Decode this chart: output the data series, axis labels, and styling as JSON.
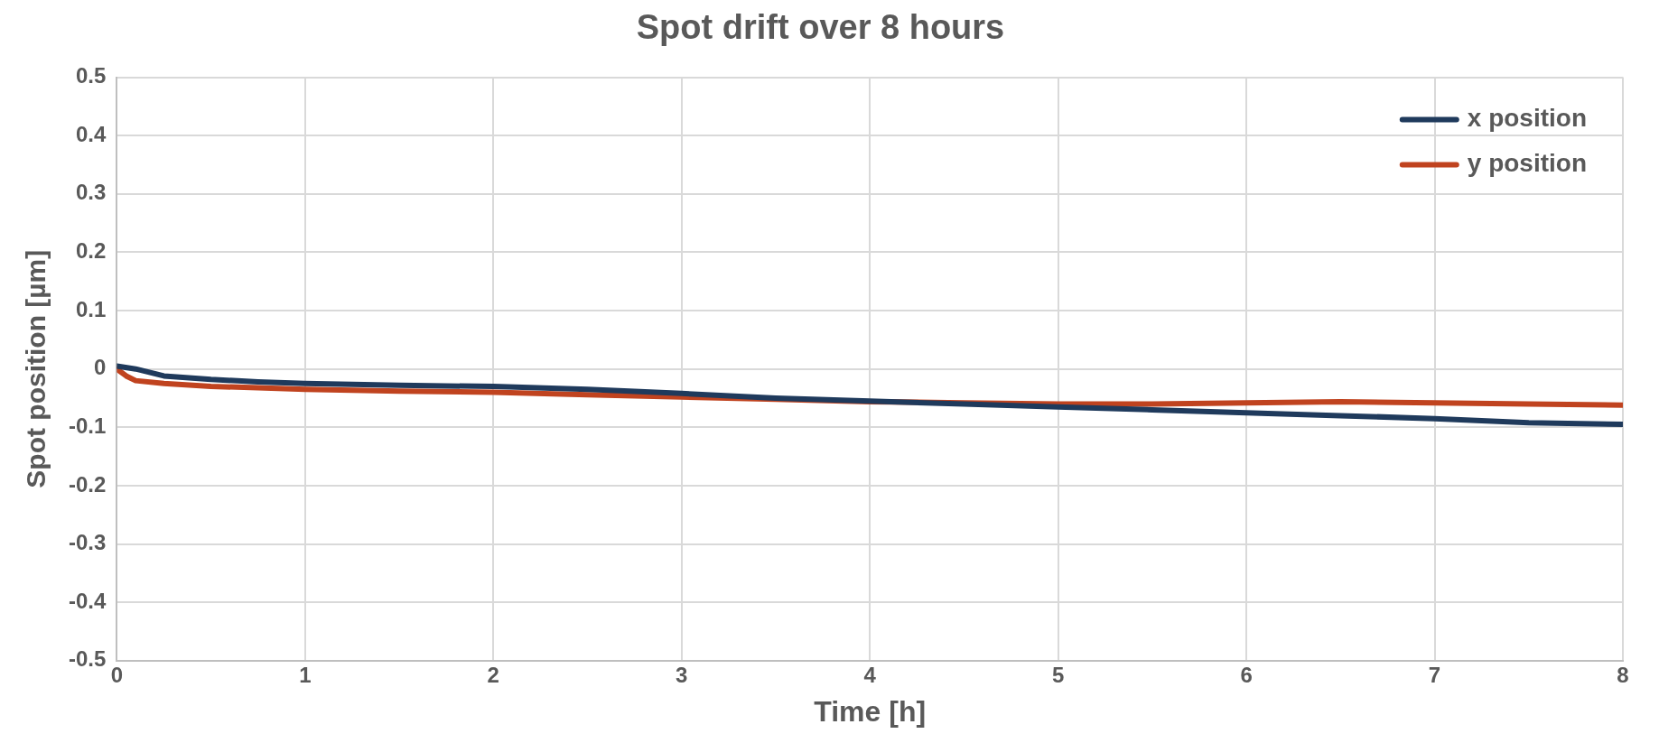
{
  "chart_data": {
    "type": "line",
    "title": "Spot drift over 8 hours",
    "xlabel": "Time [h]",
    "ylabel": "Spot position [µm]",
    "xlim": [
      0,
      8
    ],
    "xticks": [
      0,
      1,
      2,
      3,
      4,
      5,
      6,
      7,
      8
    ],
    "ylim": [
      -0.5,
      0.5
    ],
    "yticks": [
      -0.5,
      -0.4,
      -0.3,
      -0.2,
      -0.1,
      0,
      0.1,
      0.2,
      0.3,
      0.4,
      0.5
    ],
    "grid": true,
    "legend": "top right",
    "marker": "none",
    "line_style": "solid",
    "series": [
      {
        "name": "x position",
        "color": "#1f3a5c",
        "x": [
          0,
          0.1,
          0.25,
          0.5,
          0.75,
          1,
          1.5,
          2,
          2.5,
          3,
          3.5,
          4,
          4.5,
          5,
          5.5,
          6,
          6.5,
          7,
          7.5,
          8
        ],
        "values": [
          0.005,
          0.0,
          -0.012,
          -0.018,
          -0.022,
          -0.025,
          -0.028,
          -0.03,
          -0.035,
          -0.042,
          -0.05,
          -0.055,
          -0.06,
          -0.065,
          -0.07,
          -0.075,
          -0.08,
          -0.085,
          -0.092,
          -0.095
        ]
      },
      {
        "name": "y position",
        "color": "#c0431f",
        "x": [
          0,
          0.05,
          0.1,
          0.25,
          0.5,
          0.75,
          1,
          1.5,
          2,
          2.5,
          3,
          3.5,
          4,
          4.5,
          5,
          5.5,
          6,
          6.5,
          7,
          7.5,
          8
        ],
        "values": [
          0,
          -0.012,
          -0.02,
          -0.025,
          -0.03,
          -0.032,
          -0.035,
          -0.038,
          -0.04,
          -0.044,
          -0.048,
          -0.052,
          -0.056,
          -0.058,
          -0.06,
          -0.06,
          -0.058,
          -0.056,
          -0.058,
          -0.06,
          -0.062
        ]
      }
    ]
  }
}
